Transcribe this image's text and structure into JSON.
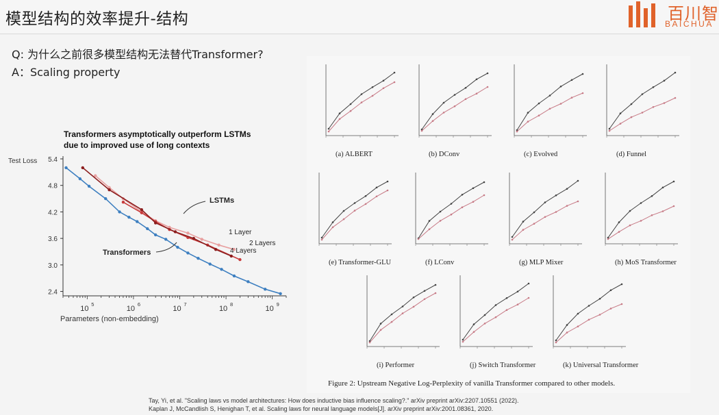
{
  "slide": {
    "title": "模型结构的效率提升-结构",
    "question": "Q: 为什么之前很多模型结构无法替代Transformer?",
    "answer": "A：Scaling property"
  },
  "logo": {
    "cn": "百川智",
    "en": "BAICHUA",
    "color": "#e0622a"
  },
  "chart_data": [
    {
      "type": "line",
      "title_line1": "Transformers asymptotically outperform LSTMs",
      "title_line2": "due to improved use of long contexts",
      "ylabel": "Test Loss",
      "xlabel": "Parameters (non-embedding)",
      "x_scale": "log",
      "xlim": [
        30000,
        2000000000
      ],
      "ylim": [
        2.3,
        5.4
      ],
      "y_ticks": [
        5.4,
        4.8,
        4.2,
        3.6,
        3.0,
        2.4
      ],
      "x_ticks": [
        {
          "value": 100000,
          "base": "10",
          "exp": "5"
        },
        {
          "value": 1000000,
          "base": "10",
          "exp": "6"
        },
        {
          "value": 10000000,
          "base": "10",
          "exp": "7"
        },
        {
          "value": 100000000,
          "base": "10",
          "exp": "8"
        },
        {
          "value": 1000000000,
          "base": "10",
          "exp": "9"
        }
      ],
      "series": [
        {
          "name": "Transformers",
          "color": "#3d7fc0",
          "x": [
            35000,
            70000,
            110000,
            250000,
            500000,
            800000,
            1200000,
            2000000,
            3000000,
            5000000,
            9000000,
            15000000,
            25000000,
            45000000,
            80000000,
            150000000,
            300000000,
            700000000,
            1500000000
          ],
          "y": [
            5.2,
            4.95,
            4.78,
            4.5,
            4.2,
            4.08,
            3.98,
            3.82,
            3.68,
            3.58,
            3.4,
            3.27,
            3.15,
            3.02,
            2.9,
            2.75,
            2.62,
            2.45,
            2.35
          ]
        },
        {
          "name": "1 Layer",
          "color": "#e8a0a0",
          "x": [
            150000,
            300000,
            600000,
            1500000,
            3000000,
            6000000,
            15000000,
            30000000,
            70000000,
            150000000
          ],
          "y": [
            5.02,
            4.75,
            4.5,
            4.2,
            4.0,
            3.85,
            3.72,
            3.58,
            3.45,
            3.35
          ]
        },
        {
          "name": "2 Layers",
          "color": "#c83c3c",
          "x": [
            600000,
            1500000,
            3000000,
            6000000,
            15000000,
            40000000,
            200000000
          ],
          "y": [
            4.42,
            4.18,
            3.98,
            3.8,
            3.62,
            3.45,
            3.12
          ]
        },
        {
          "name": "4 Layers",
          "color": "#8c1e1e",
          "x": [
            80000,
            300000,
            1500000,
            3000000,
            8000000,
            20000000,
            60000000,
            130000000
          ],
          "y": [
            5.2,
            4.7,
            4.25,
            3.95,
            3.75,
            3.6,
            3.35,
            3.2
          ]
        }
      ],
      "annotations": [
        {
          "text": "LSTMs"
        },
        {
          "text": "Transformers"
        },
        {
          "text": "1 Layer"
        },
        {
          "text": "2 Layers"
        },
        {
          "text": "4 Layers"
        }
      ]
    }
  ],
  "paper_figure": {
    "subplots": [
      {
        "label": "(a) ALBERT"
      },
      {
        "label": "(b) DConv"
      },
      {
        "label": "(c) Evolved"
      },
      {
        "label": "(d) Funnel"
      },
      {
        "label": "(e) Transformer-GLU"
      },
      {
        "label": "(f) LConv"
      },
      {
        "label": "(g) MLP Mixer"
      },
      {
        "label": "(h) MoS Transformer"
      },
      {
        "label": "(i) Performer"
      },
      {
        "label": "(j) Switch Transformer"
      },
      {
        "label": "(k) Universal Transformer"
      }
    ],
    "caption": "Figure 2: Upstream Negative Log-Perplexity of vanilla Transformer compared to other models."
  },
  "references": [
    "Tay, Yi, et al. \"Scaling laws vs model architectures: How does inductive bias influence scaling?.\" arXiv preprint arXiv:2207.10551 (2022).",
    "Kaplan J, McCandlish S, Henighan T, et al. Scaling laws for neural language models[J]. arXiv preprint arXiv:2001.08361, 2020."
  ]
}
